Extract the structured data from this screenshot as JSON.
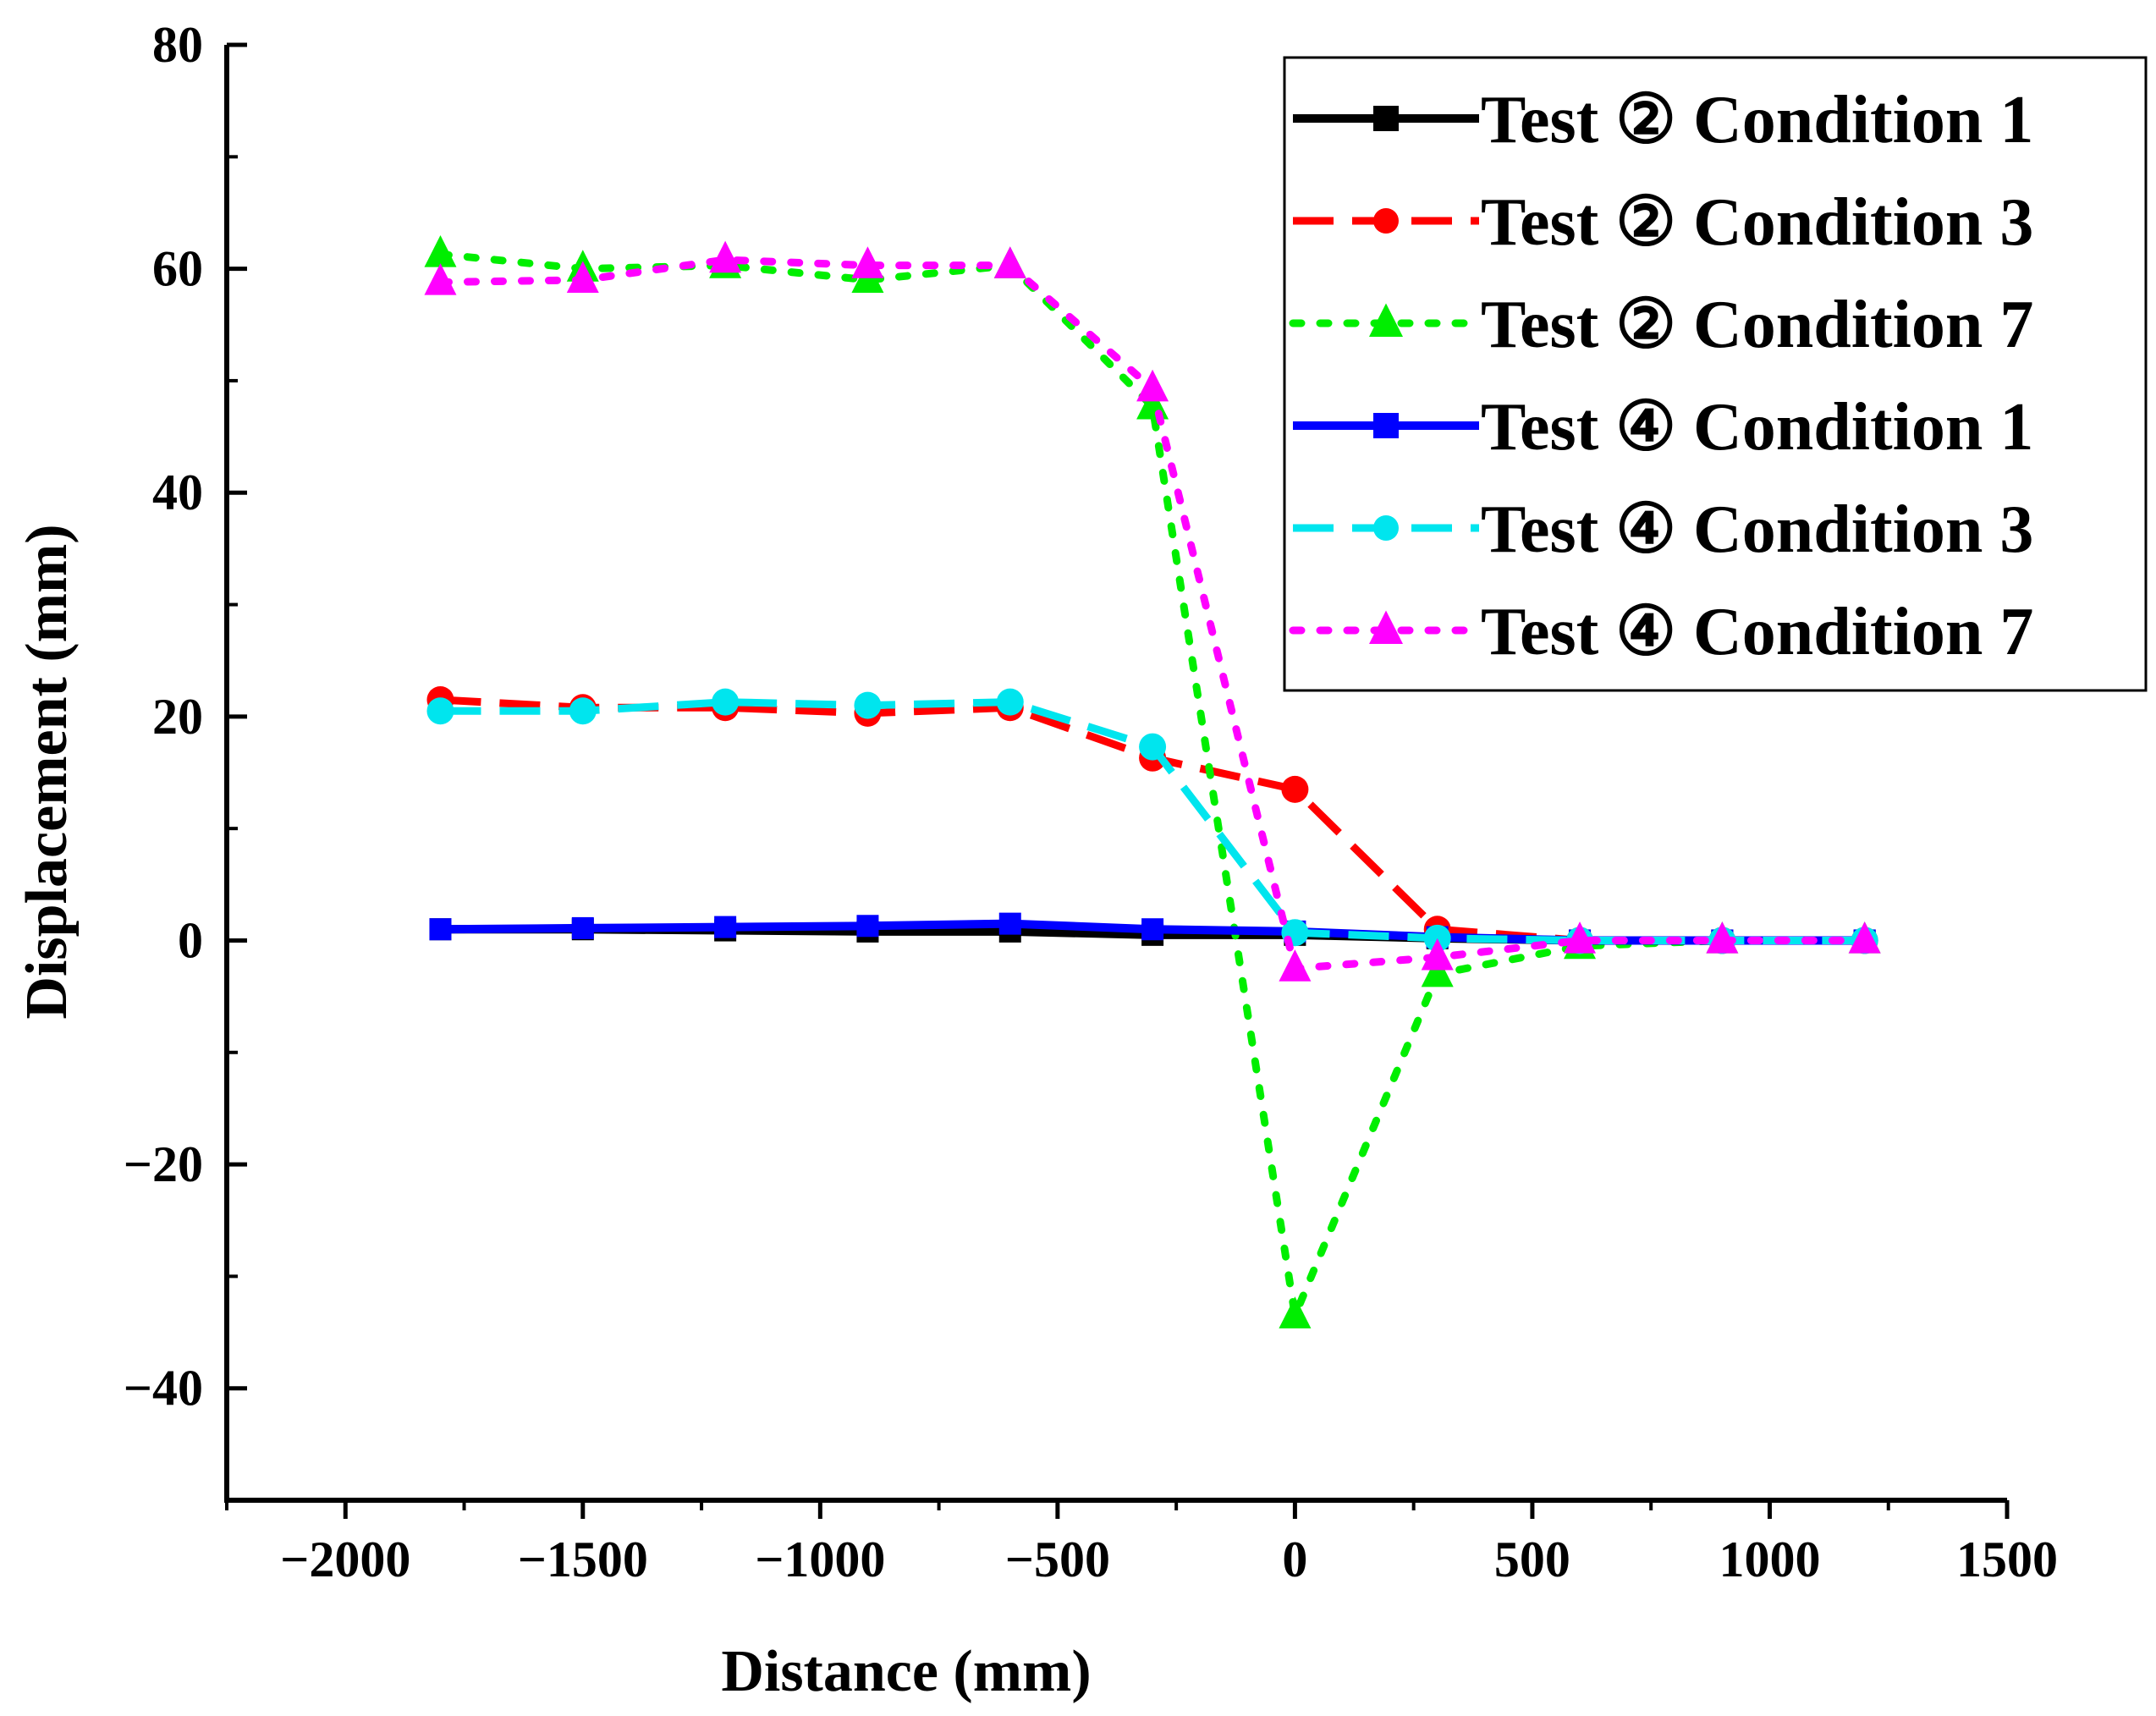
{
  "chart_data": {
    "type": "line",
    "title": "",
    "xlabel": "Distance (mm)",
    "ylabel": "Displacement (mm)",
    "xlim": [
      -2250,
      1500
    ],
    "ylim": [
      -50,
      80
    ],
    "x_ticks": [
      -2000,
      -1500,
      -1000,
      -500,
      0,
      500,
      1000,
      1500
    ],
    "x_tick_labels": [
      "−2000",
      "−1500",
      "−1000",
      "−500",
      "0",
      "500",
      "1000",
      "1500"
    ],
    "y_ticks": [
      -40,
      -20,
      0,
      20,
      40,
      60,
      80
    ],
    "y_tick_labels": [
      "−40",
      "−20",
      "0",
      "20",
      "40",
      "60",
      "80"
    ],
    "grid": false,
    "legend_position": "top-right",
    "x": [
      -1800,
      -1500,
      -1200,
      -900,
      -600,
      -300,
      0,
      300,
      600,
      900,
      1200
    ],
    "series": [
      {
        "name": "Test ② Condition 1",
        "color": "#000000",
        "line_style": "solid",
        "marker": "square",
        "values": [
          1.0,
          1.0,
          0.9,
          0.8,
          0.8,
          0.5,
          0.5,
          0.2,
          0.0,
          0.0,
          0.0
        ]
      },
      {
        "name": "Test ② Condition 3",
        "color": "#ff0000",
        "line_style": "dashed",
        "marker": "circle",
        "values": [
          21.5,
          20.8,
          20.8,
          20.3,
          20.8,
          16.3,
          13.5,
          1.0,
          0.0,
          0.0,
          0.0
        ]
      },
      {
        "name": "Test ② Condition 7",
        "color": "#00ee00",
        "line_style": "dotted",
        "marker": "triangle",
        "values": [
          61.3,
          60.0,
          60.3,
          59.0,
          60.3,
          47.7,
          -33.5,
          -3.0,
          -0.5,
          0.0,
          0.0
        ]
      },
      {
        "name": "Test ④ Condition 1",
        "color": "#0000ff",
        "line_style": "solid",
        "marker": "square",
        "values": [
          1.0,
          1.1,
          1.2,
          1.3,
          1.5,
          1.0,
          0.8,
          0.3,
          0.0,
          0.0,
          0.0
        ]
      },
      {
        "name": "Test ④ Condition 3",
        "color": "#00e5ee",
        "line_style": "dashed",
        "marker": "circle",
        "values": [
          20.5,
          20.5,
          21.3,
          21.0,
          21.3,
          17.3,
          0.7,
          0.2,
          0.0,
          0.0,
          0.0
        ]
      },
      {
        "name": "Test ④ Condition 7",
        "color": "#ff00ff",
        "line_style": "dotted",
        "marker": "triangle",
        "values": [
          58.8,
          59.0,
          60.8,
          60.3,
          60.3,
          49.3,
          -2.5,
          -1.5,
          0.0,
          0.0,
          0.0
        ]
      }
    ]
  }
}
